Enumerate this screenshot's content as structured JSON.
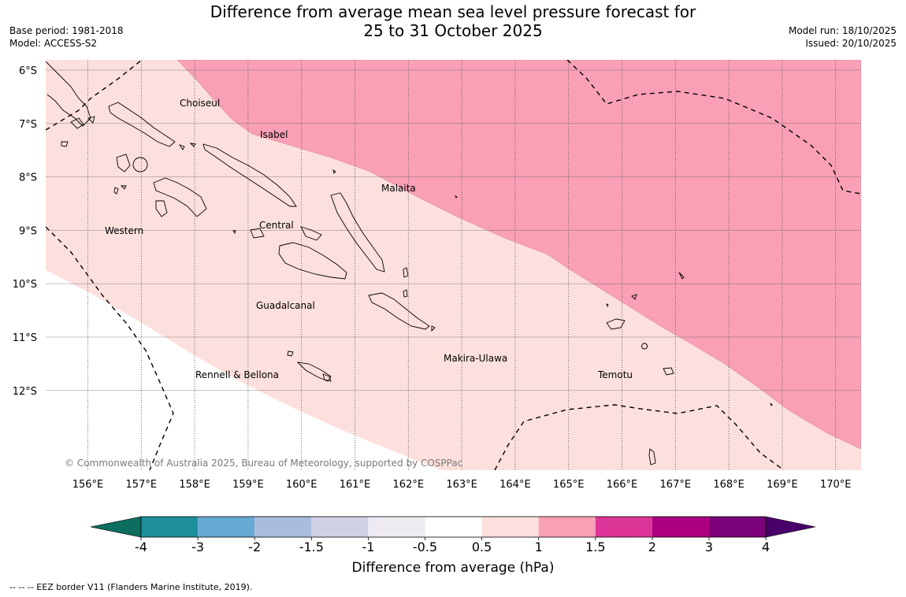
{
  "header": {
    "title_line1": "Difference from average mean sea level pressure forecast for",
    "title_line2": "25 to 31 October 2025",
    "base_period": "Base period: 1981-2018",
    "model": "Model: ACCESS-S2",
    "model_run": "Model run: 18/10/2025",
    "issued": "Issued: 20/10/2025"
  },
  "map": {
    "lat_labels": [
      "6°S",
      "7°S",
      "8°S",
      "9°S",
      "10°S",
      "11°S",
      "12°S"
    ],
    "lon_labels": [
      "156°E",
      "157°E",
      "158°E",
      "159°E",
      "160°E",
      "161°E",
      "162°E",
      "163°E",
      "164°E",
      "165°E",
      "166°E",
      "167°E",
      "168°E",
      "169°E",
      "170°E"
    ],
    "places": [
      "Choiseul",
      "Isabel",
      "Malaita",
      "Western",
      "Central",
      "Guadalcanal",
      "Makira-Ulawa",
      "Temotu",
      "Rennell & Bellona"
    ],
    "copyright": "© Commonwealth of Australia 2025, Bureau of Meteorology, supported by COSPPac",
    "colors": {
      "band_0_5_to_1": "#fce0dd",
      "band_1_to_1_5": "#f9a0b6",
      "below_0_5": "#ffffff"
    }
  },
  "colorbar": {
    "ticks": [
      "-4",
      "-3",
      "-2",
      "-1.5",
      "-1",
      "-0.5",
      "0.5",
      "1",
      "1.5",
      "2",
      "3",
      "4"
    ],
    "colors": [
      "#0d6e5f",
      "#1e8f9b",
      "#66a9d3",
      "#a8bddd",
      "#d0d1e6",
      "#eeeaf2",
      "#ffffff",
      "#fce0dd",
      "#f9a0b6",
      "#dd3597",
      "#ad0080",
      "#7a0177",
      "#4a006b"
    ],
    "title": "Difference from average (hPa)"
  },
  "footnote": "--  --  -- EEZ border V11 (Flanders Marine Institute, 2019)."
}
